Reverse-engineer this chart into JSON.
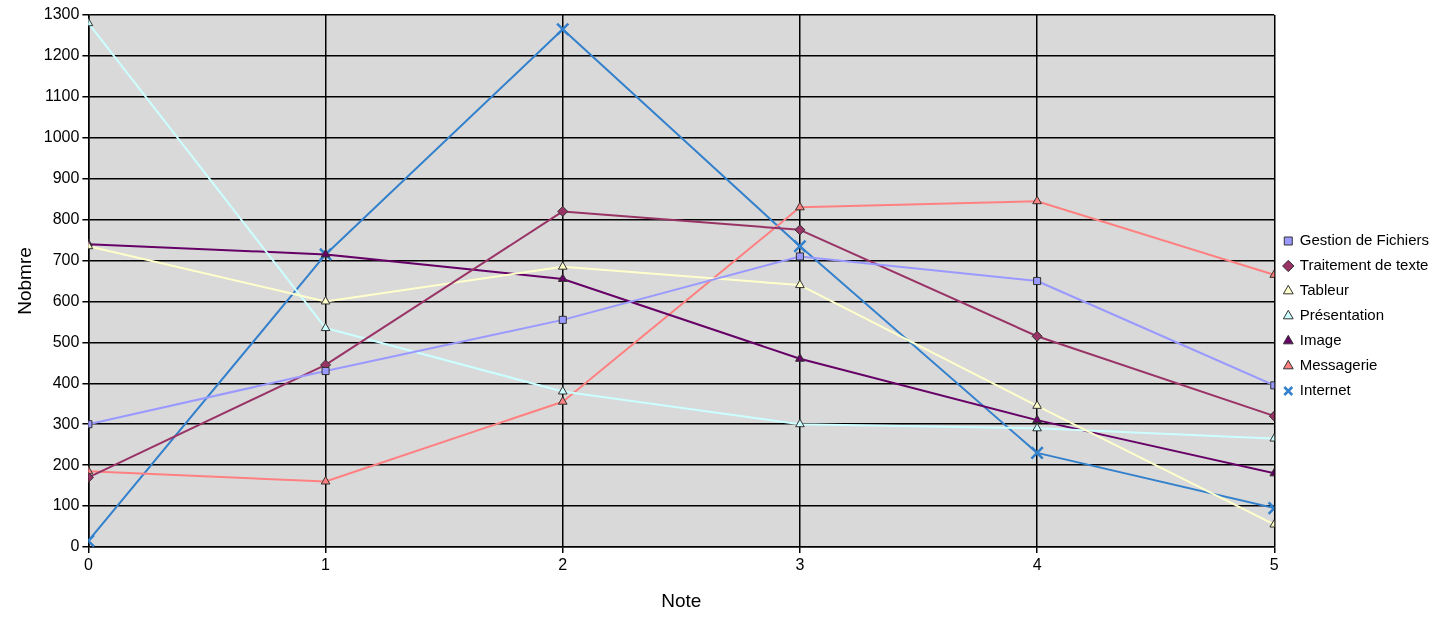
{
  "chart_data": {
    "type": "line",
    "xlabel": "Note",
    "ylabel": "Nobmre",
    "x": [
      0,
      1,
      2,
      3,
      4,
      5
    ],
    "xlim": [
      0,
      5
    ],
    "xticks": [
      0,
      1,
      2,
      3,
      4,
      5
    ],
    "ylim": [
      0,
      1300
    ],
    "yticks": [
      0,
      100,
      200,
      300,
      400,
      500,
      600,
      700,
      800,
      900,
      1000,
      1100,
      1200,
      1300
    ],
    "grid": true,
    "legend": "right",
    "line_style": "solid",
    "series": [
      {
        "name": "Gestion de Fichiers",
        "color": "#9999ff",
        "marker": "square",
        "values": [
          300,
          430,
          555,
          710,
          650,
          395
        ]
      },
      {
        "name": "Traitement de texte",
        "color": "#993366",
        "marker": "diamond",
        "values": [
          170,
          445,
          820,
          775,
          515,
          320
        ]
      },
      {
        "name": "Tableur",
        "color": "#ffffcc",
        "marker": "triangle",
        "values": [
          735,
          600,
          685,
          640,
          345,
          55
        ]
      },
      {
        "name": "Présentation",
        "color": "#ccffff",
        "marker": "triangle",
        "values": [
          1280,
          535,
          380,
          300,
          290,
          265
        ]
      },
      {
        "name": "Image",
        "color": "#660066",
        "marker": "triangle",
        "values": [
          740,
          715,
          655,
          460,
          310,
          180
        ]
      },
      {
        "name": "Messagerie",
        "color": "#ff8080",
        "marker": "triangle",
        "values": [
          185,
          160,
          355,
          830,
          845,
          665
        ]
      },
      {
        "name": "Internet",
        "color": "#3380cc",
        "marker": "cross",
        "values": [
          15,
          715,
          1265,
          735,
          230,
          95
        ]
      }
    ]
  }
}
